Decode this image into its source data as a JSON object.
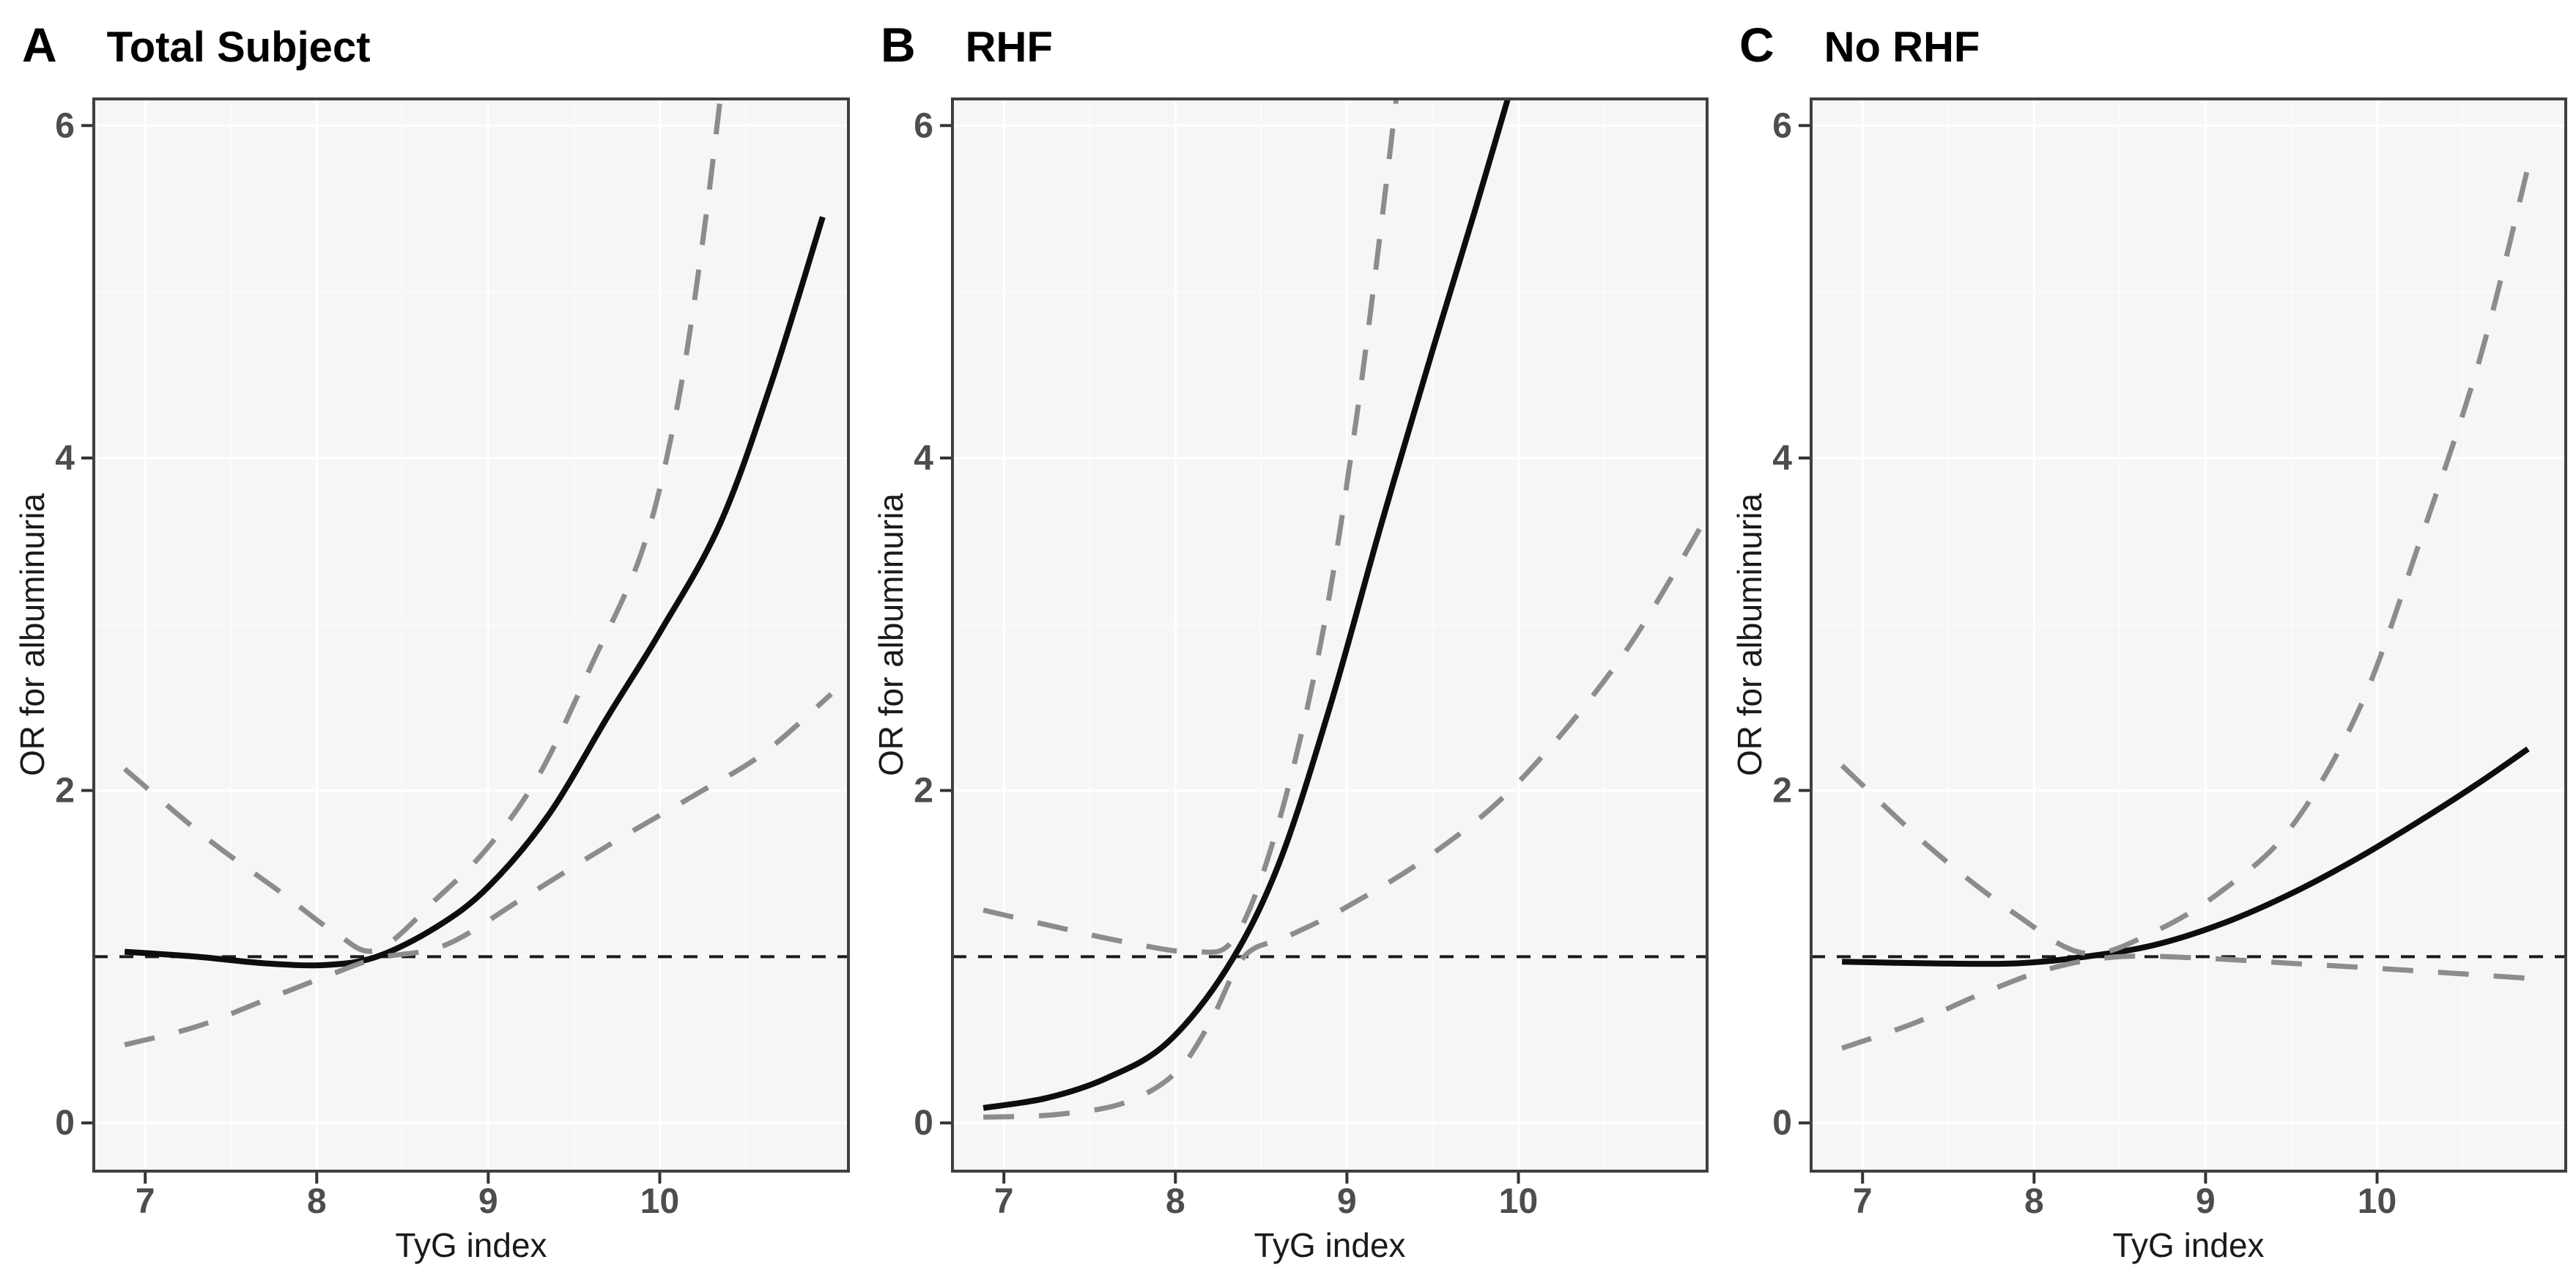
{
  "figure": {
    "kind": "restricted-cubic-spline-odds-ratio-figure",
    "x_axis_label": "TyG index",
    "y_axis_label": "OR for albuminuria"
  },
  "theme": {
    "panel_bg": "#f6f6f6",
    "grid_major": "#ffffff",
    "grid_minor": "#fbfbfb",
    "border": "#3f3f3f",
    "tick_color": "#333333",
    "tick_label_color": "#4d4d4d",
    "ref_line_color": "#1a1a1a",
    "estimate_color": "#0d0d0d",
    "ci_color": "#8c8c8c"
  },
  "chart_data": [
    {
      "type": "line",
      "panel_label": "A",
      "title": "Total Subject",
      "xlabel": "TyG index",
      "ylabel": "OR for albuminuria",
      "xlim": [
        6.7,
        11.1
      ],
      "ylim": [
        -0.29,
        6.16
      ],
      "x_ticks": [
        7,
        8,
        9,
        10
      ],
      "y_ticks": [
        0,
        2,
        4,
        6
      ],
      "y_minor": [
        1,
        3,
        5
      ],
      "reference_line_y": 1,
      "grid": true,
      "legend": "none",
      "series": [
        {
          "name": "OR estimate",
          "style": "solid",
          "points": [
            [
              6.88,
              1.03
            ],
            [
              7.3,
              1.0
            ],
            [
              7.7,
              0.96
            ],
            [
              8.05,
              0.95
            ],
            [
              8.35,
              1.0
            ],
            [
              8.7,
              1.18
            ],
            [
              9.0,
              1.42
            ],
            [
              9.35,
              1.85
            ],
            [
              9.7,
              2.45
            ],
            [
              10.0,
              2.95
            ],
            [
              10.35,
              3.6
            ],
            [
              10.65,
              4.45
            ],
            [
              10.95,
              5.45
            ]
          ]
        },
        {
          "name": "Lower 95% CI",
          "style": "dashed",
          "points": [
            [
              6.88,
              0.47
            ],
            [
              7.3,
              0.58
            ],
            [
              7.7,
              0.74
            ],
            [
              8.05,
              0.88
            ],
            [
              8.35,
              0.99
            ],
            [
              8.75,
              1.07
            ],
            [
              9.2,
              1.35
            ],
            [
              9.7,
              1.67
            ],
            [
              10.2,
              1.97
            ],
            [
              10.6,
              2.22
            ],
            [
              11.0,
              2.58
            ]
          ]
        },
        {
          "name": "Upper 95% CI",
          "style": "dashed",
          "points": [
            [
              6.88,
              2.13
            ],
            [
              7.35,
              1.72
            ],
            [
              7.8,
              1.38
            ],
            [
              8.1,
              1.15
            ],
            [
              8.35,
              1.04
            ],
            [
              8.7,
              1.35
            ],
            [
              9.0,
              1.66
            ],
            [
              9.3,
              2.1
            ],
            [
              9.6,
              2.75
            ],
            [
              9.9,
              3.45
            ],
            [
              10.1,
              4.3
            ],
            [
              10.25,
              5.3
            ],
            [
              10.38,
              6.4
            ]
          ]
        }
      ]
    },
    {
      "type": "line",
      "panel_label": "B",
      "title": "RHF",
      "xlabel": "TyG index",
      "ylabel": "OR for albuminuria",
      "xlim": [
        6.7,
        11.1
      ],
      "ylim": [
        -0.29,
        6.16
      ],
      "x_ticks": [
        7,
        8,
        9,
        10
      ],
      "y_ticks": [
        0,
        2,
        4,
        6
      ],
      "y_minor": [
        1,
        3,
        5
      ],
      "reference_line_y": 1,
      "grid": true,
      "legend": "none",
      "series": [
        {
          "name": "OR estimate",
          "style": "solid",
          "points": [
            [
              6.88,
              0.09
            ],
            [
              7.25,
              0.15
            ],
            [
              7.6,
              0.27
            ],
            [
              7.95,
              0.48
            ],
            [
              8.3,
              0.93
            ],
            [
              8.6,
              1.55
            ],
            [
              8.9,
              2.5
            ],
            [
              9.2,
              3.6
            ],
            [
              9.5,
              4.65
            ],
            [
              9.75,
              5.5
            ],
            [
              10.02,
              6.45
            ]
          ]
        },
        {
          "name": "Lower 95% CI",
          "style": "dashed",
          "points": [
            [
              6.88,
              0.035
            ],
            [
              7.3,
              0.05
            ],
            [
              7.7,
              0.12
            ],
            [
              8.0,
              0.3
            ],
            [
              8.2,
              0.6
            ],
            [
              8.4,
              1.0
            ],
            [
              8.65,
              1.12
            ],
            [
              9.0,
              1.3
            ],
            [
              9.5,
              1.62
            ],
            [
              10.0,
              2.05
            ],
            [
              10.6,
              2.8
            ],
            [
              11.1,
              3.65
            ]
          ]
        },
        {
          "name": "Upper 95% CI",
          "style": "dashed",
          "points": [
            [
              6.88,
              1.28
            ],
            [
              7.3,
              1.18
            ],
            [
              7.7,
              1.09
            ],
            [
              8.1,
              1.03
            ],
            [
              8.35,
              1.12
            ],
            [
              8.6,
              1.8
            ],
            [
              8.85,
              2.9
            ],
            [
              9.05,
              4.2
            ],
            [
              9.2,
              5.4
            ],
            [
              9.32,
              6.45
            ]
          ]
        }
      ]
    },
    {
      "type": "line",
      "panel_label": "C",
      "title": "No RHF",
      "xlabel": "TyG index",
      "ylabel": "OR for albuminuria",
      "xlim": [
        6.7,
        11.1
      ],
      "ylim": [
        -0.29,
        6.16
      ],
      "x_ticks": [
        7,
        8,
        9,
        10
      ],
      "y_ticks": [
        0,
        2,
        4,
        6
      ],
      "y_minor": [
        1,
        3,
        5
      ],
      "reference_line_y": 1,
      "grid": true,
      "legend": "none",
      "series": [
        {
          "name": "OR estimate",
          "style": "solid",
          "points": [
            [
              6.88,
              0.97
            ],
            [
              7.4,
              0.96
            ],
            [
              7.9,
              0.96
            ],
            [
              8.3,
              1.0
            ],
            [
              8.7,
              1.07
            ],
            [
              9.1,
              1.2
            ],
            [
              9.5,
              1.38
            ],
            [
              9.9,
              1.6
            ],
            [
              10.3,
              1.85
            ],
            [
              10.6,
              2.05
            ],
            [
              10.88,
              2.25
            ]
          ]
        },
        {
          "name": "Lower 95% CI",
          "style": "dashed",
          "points": [
            [
              6.88,
              0.45
            ],
            [
              7.3,
              0.6
            ],
            [
              7.7,
              0.78
            ],
            [
              8.1,
              0.93
            ],
            [
              8.5,
              1.0
            ],
            [
              9.0,
              0.99
            ],
            [
              9.5,
              0.96
            ],
            [
              10.0,
              0.93
            ],
            [
              10.45,
              0.9
            ],
            [
              10.88,
              0.87
            ]
          ]
        },
        {
          "name": "Upper 95% CI",
          "style": "dashed",
          "points": [
            [
              6.88,
              2.15
            ],
            [
              7.4,
              1.65
            ],
            [
              7.9,
              1.25
            ],
            [
              8.3,
              1.02
            ],
            [
              8.7,
              1.15
            ],
            [
              9.1,
              1.4
            ],
            [
              9.5,
              1.78
            ],
            [
              9.9,
              2.5
            ],
            [
              10.25,
              3.5
            ],
            [
              10.6,
              4.6
            ],
            [
              10.88,
              5.75
            ]
          ]
        }
      ]
    }
  ]
}
